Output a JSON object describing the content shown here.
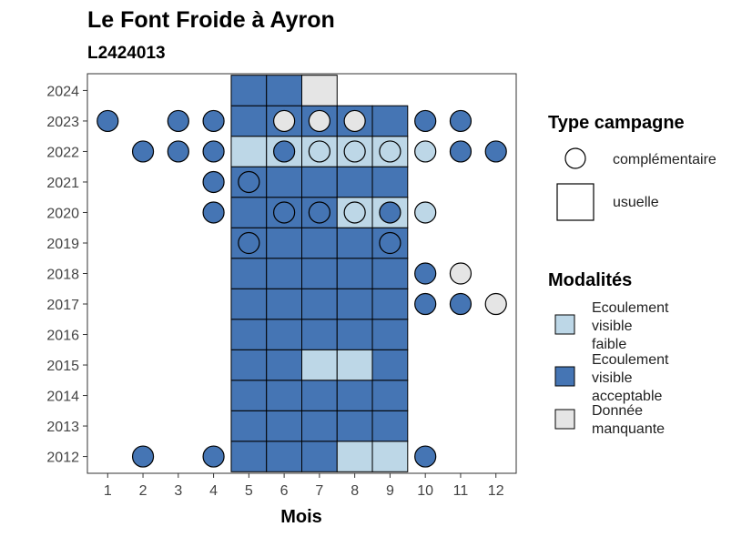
{
  "chart_data": {
    "type": "heatmap",
    "title": "Le Font Froide à Ayron",
    "subtitle": "L2424013",
    "xlabel": "Mois",
    "ylabel": "",
    "x_ticks": [
      "1",
      "2",
      "3",
      "4",
      "5",
      "6",
      "7",
      "8",
      "9",
      "10",
      "11",
      "12"
    ],
    "y_ticks": [
      "2012",
      "2013",
      "2014",
      "2015",
      "2016",
      "2017",
      "2018",
      "2019",
      "2020",
      "2021",
      "2022",
      "2023",
      "2024"
    ],
    "colors": {
      "faible": "#BDD7E7",
      "acceptable": "#4575B4",
      "manquante": "#E5E5E5"
    },
    "legend_type": {
      "title": "Type campagne",
      "items": [
        {
          "key": "complementaire",
          "label": "complémentaire"
        },
        {
          "key": "usuelle",
          "label": "usuelle"
        }
      ]
    },
    "legend_modalites": {
      "title": "Modalités",
      "items": [
        {
          "key": "faible",
          "lines": [
            "Ecoulement",
            "visible",
            "faible"
          ]
        },
        {
          "key": "acceptable",
          "lines": [
            "Ecoulement",
            "visible",
            "acceptable"
          ]
        },
        {
          "key": "manquante",
          "lines": [
            "Donnée",
            "manquante"
          ]
        }
      ]
    },
    "usuelle": [
      {
        "year": 2012,
        "values": [
          "acceptable",
          "acceptable",
          "acceptable",
          "faible",
          "faible"
        ]
      },
      {
        "year": 2013,
        "values": [
          "acceptable",
          "acceptable",
          "acceptable",
          "acceptable",
          "acceptable"
        ]
      },
      {
        "year": 2014,
        "values": [
          "acceptable",
          "acceptable",
          "acceptable",
          "acceptable",
          "acceptable"
        ]
      },
      {
        "year": 2015,
        "values": [
          "acceptable",
          "acceptable",
          "faible",
          "faible",
          "acceptable"
        ]
      },
      {
        "year": 2016,
        "values": [
          "acceptable",
          "acceptable",
          "acceptable",
          "acceptable",
          "acceptable"
        ]
      },
      {
        "year": 2017,
        "values": [
          "acceptable",
          "acceptable",
          "acceptable",
          "acceptable",
          "acceptable"
        ]
      },
      {
        "year": 2018,
        "values": [
          "acceptable",
          "acceptable",
          "acceptable",
          "acceptable",
          "acceptable"
        ]
      },
      {
        "year": 2019,
        "values": [
          "acceptable",
          "acceptable",
          "acceptable",
          "acceptable",
          "acceptable"
        ]
      },
      {
        "year": 2020,
        "values": [
          "acceptable",
          "acceptable",
          "acceptable",
          "faible",
          "faible"
        ]
      },
      {
        "year": 2021,
        "values": [
          "acceptable",
          "acceptable",
          "acceptable",
          "acceptable",
          "acceptable"
        ]
      },
      {
        "year": 2022,
        "values": [
          "faible",
          "faible",
          "faible",
          "faible",
          "faible"
        ]
      },
      {
        "year": 2023,
        "values": [
          "acceptable",
          "acceptable",
          "acceptable",
          "acceptable",
          "acceptable"
        ]
      },
      {
        "year": 2024,
        "values": [
          "acceptable",
          "acceptable",
          "manquante",
          null,
          null
        ]
      }
    ],
    "usuelle_months": [
      5,
      6,
      7,
      8,
      9
    ],
    "complementaire": [
      {
        "year": 2012,
        "month": 2,
        "value": "acceptable"
      },
      {
        "year": 2012,
        "month": 4,
        "value": "acceptable"
      },
      {
        "year": 2012,
        "month": 10,
        "value": "acceptable"
      },
      {
        "year": 2017,
        "month": 10,
        "value": "acceptable"
      },
      {
        "year": 2017,
        "month": 11,
        "value": "acceptable"
      },
      {
        "year": 2017,
        "month": 12,
        "value": "manquante"
      },
      {
        "year": 2018,
        "month": 10,
        "value": "acceptable"
      },
      {
        "year": 2018,
        "month": 11,
        "value": "manquante"
      },
      {
        "year": 2019,
        "month": 5,
        "value": "acceptable"
      },
      {
        "year": 2019,
        "month": 9,
        "value": "acceptable"
      },
      {
        "year": 2020,
        "month": 4,
        "value": "acceptable"
      },
      {
        "year": 2020,
        "month": 6,
        "value": "acceptable"
      },
      {
        "year": 2020,
        "month": 7,
        "value": "acceptable"
      },
      {
        "year": 2020,
        "month": 8,
        "value": "faible"
      },
      {
        "year": 2020,
        "month": 9,
        "value": "acceptable"
      },
      {
        "year": 2020,
        "month": 10,
        "value": "faible"
      },
      {
        "year": 2021,
        "month": 4,
        "value": "acceptable"
      },
      {
        "year": 2021,
        "month": 5,
        "value": "acceptable"
      },
      {
        "year": 2022,
        "month": 2,
        "value": "acceptable"
      },
      {
        "year": 2022,
        "month": 3,
        "value": "acceptable"
      },
      {
        "year": 2022,
        "month": 4,
        "value": "acceptable"
      },
      {
        "year": 2022,
        "month": 6,
        "value": "acceptable"
      },
      {
        "year": 2022,
        "month": 7,
        "value": "faible"
      },
      {
        "year": 2022,
        "month": 8,
        "value": "faible"
      },
      {
        "year": 2022,
        "month": 9,
        "value": "faible"
      },
      {
        "year": 2022,
        "month": 10,
        "value": "faible"
      },
      {
        "year": 2022,
        "month": 11,
        "value": "acceptable"
      },
      {
        "year": 2022,
        "month": 12,
        "value": "acceptable"
      },
      {
        "year": 2023,
        "month": 1,
        "value": "acceptable"
      },
      {
        "year": 2023,
        "month": 3,
        "value": "acceptable"
      },
      {
        "year": 2023,
        "month": 4,
        "value": "acceptable"
      },
      {
        "year": 2023,
        "month": 6,
        "value": "manquante"
      },
      {
        "year": 2023,
        "month": 7,
        "value": "manquante"
      },
      {
        "year": 2023,
        "month": 8,
        "value": "manquante"
      },
      {
        "year": 2023,
        "month": 10,
        "value": "acceptable"
      },
      {
        "year": 2023,
        "month": 11,
        "value": "acceptable"
      }
    ]
  }
}
